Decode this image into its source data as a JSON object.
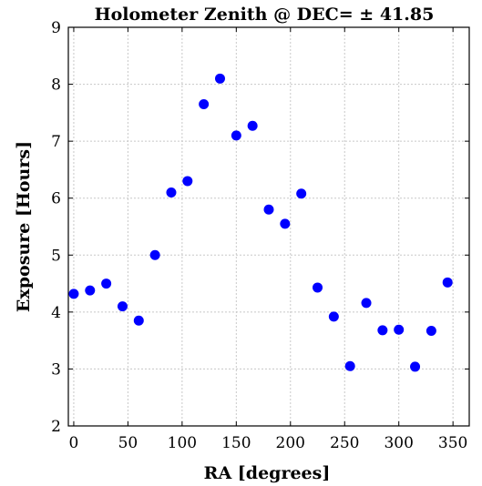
{
  "chart_data": {
    "type": "scatter",
    "title": "Holometer Zenith @ DEC= ± 41.85",
    "xlabel": "RA  [degrees]",
    "ylabel": "Exposure  [Hours]",
    "xlim": [
      -5,
      365
    ],
    "ylim": [
      2,
      9
    ],
    "xticks": [
      0,
      50,
      100,
      150,
      200,
      250,
      300,
      350
    ],
    "yticks": [
      2,
      3,
      4,
      5,
      6,
      7,
      8,
      9
    ],
    "grid": true,
    "marker_color": "#0000ff",
    "series": [
      {
        "x": [
          0,
          15,
          30,
          45,
          60,
          75,
          90,
          105,
          120,
          135,
          150,
          165,
          180,
          195,
          210,
          225,
          240,
          255,
          270,
          285,
          300,
          315,
          330,
          345
        ],
        "y": [
          4.32,
          4.38,
          4.5,
          4.1,
          3.85,
          5.0,
          6.1,
          6.3,
          7.65,
          8.1,
          7.1,
          7.27,
          5.8,
          5.55,
          6.08,
          4.43,
          3.92,
          3.05,
          4.16,
          3.68,
          3.69,
          3.04,
          3.67,
          4.52
        ]
      }
    ]
  }
}
